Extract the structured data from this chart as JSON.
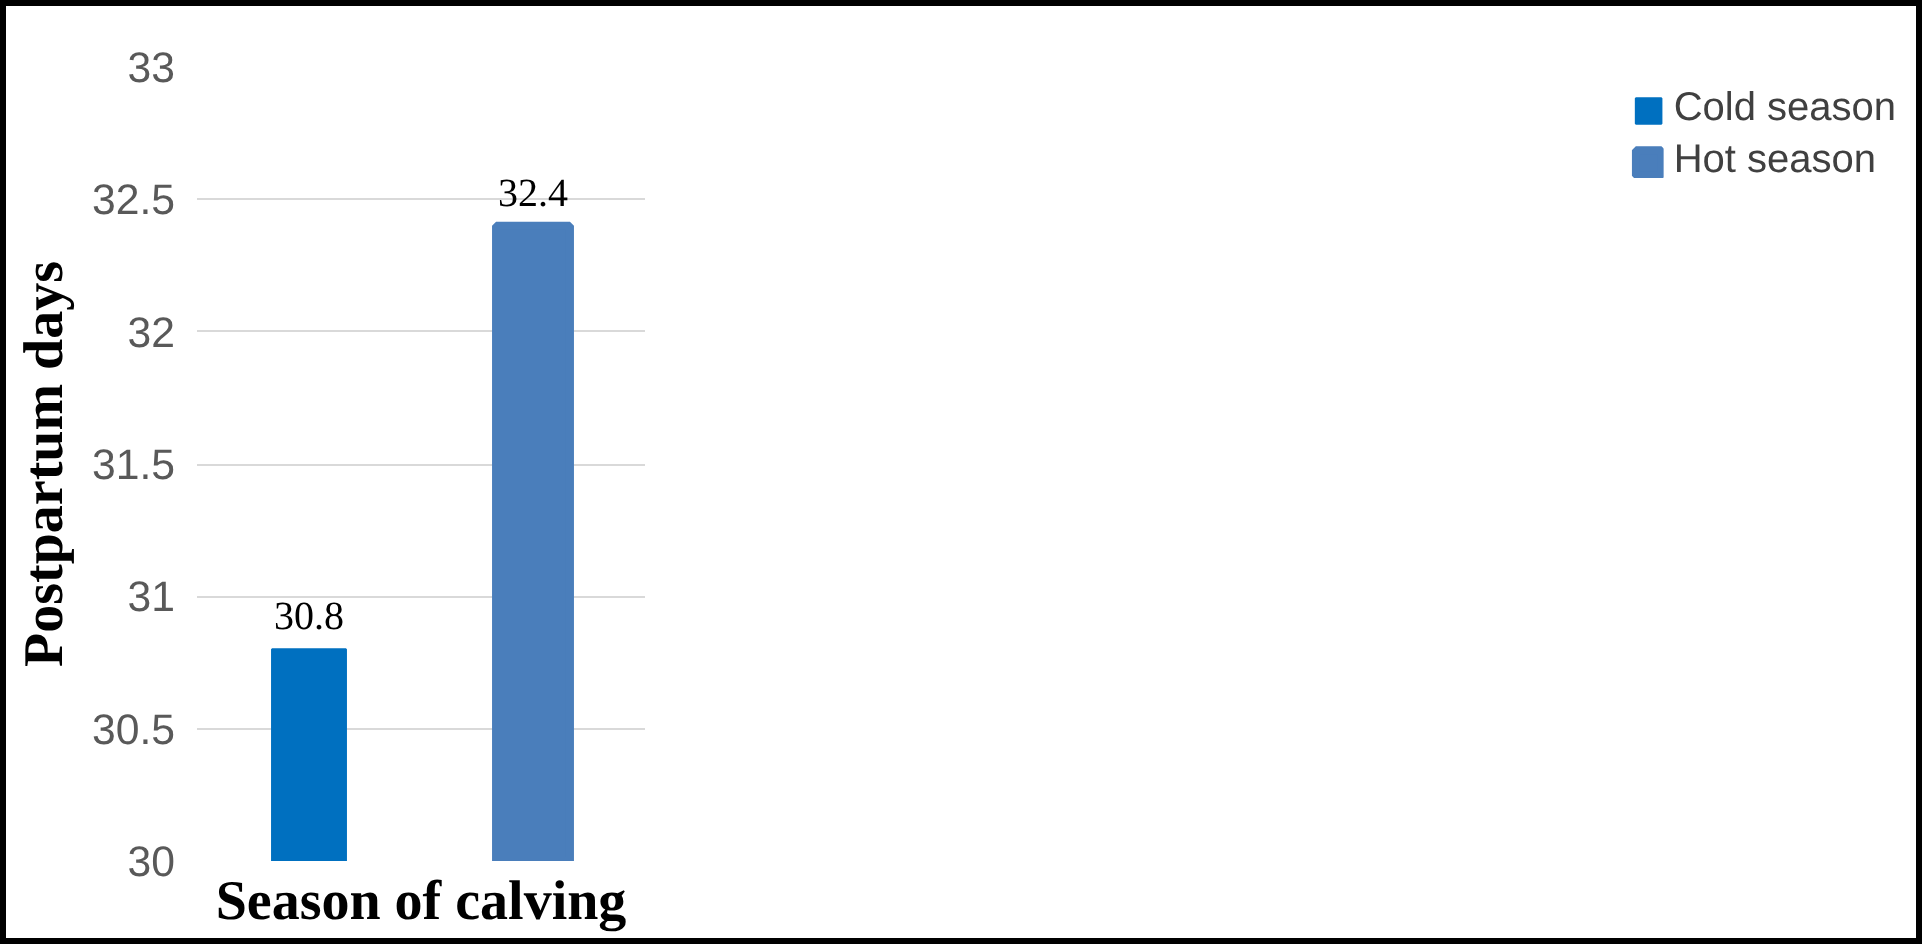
{
  "chart_data": {
    "type": "bar",
    "xlabel": "Season of calving",
    "ylabel": "Postpartum days",
    "categories": [
      null
    ],
    "series": [
      {
        "name": "Cold season",
        "color": "#0070c0",
        "values": [
          30.8
        ]
      },
      {
        "name": "Hot season",
        "color": "#4a7ebb",
        "values": [
          32.4
        ]
      }
    ],
    "ylim": [
      30,
      33
    ],
    "yticks": [
      30,
      30.5,
      31,
      31.5,
      32,
      32.5,
      33
    ],
    "grid": "y",
    "legend": "right",
    "data_labels": true
  }
}
